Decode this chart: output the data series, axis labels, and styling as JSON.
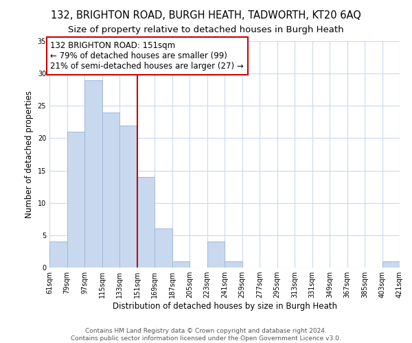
{
  "title": "132, BRIGHTON ROAD, BURGH HEATH, TADWORTH, KT20 6AQ",
  "subtitle": "Size of property relative to detached houses in Burgh Heath",
  "xlabel": "Distribution of detached houses by size in Burgh Heath",
  "ylabel": "Number of detached properties",
  "bin_edges": [
    61,
    79,
    97,
    115,
    133,
    151,
    169,
    187,
    205,
    223,
    241,
    259,
    277,
    295,
    313,
    331,
    349,
    367,
    385,
    403,
    421
  ],
  "bar_heights": [
    4,
    21,
    29,
    24,
    22,
    14,
    6,
    1,
    0,
    4,
    1,
    0,
    0,
    0,
    0,
    0,
    0,
    0,
    0,
    1
  ],
  "bar_color": "#c8d9ef",
  "bar_edge_color": "#a0b8d8",
  "vline_x": 151,
  "vline_color": "#cc0000",
  "annotation_line1": "132 BRIGHTON ROAD: 151sqm",
  "annotation_line2": "← 79% of detached houses are smaller (99)",
  "annotation_line3": "21% of semi-detached houses are larger (27) →",
  "annotation_box_color": "#ffffff",
  "annotation_box_edge_color": "#cc0000",
  "ylim": [
    0,
    35
  ],
  "yticks": [
    0,
    5,
    10,
    15,
    20,
    25,
    30,
    35
  ],
  "tick_labels": [
    "61sqm",
    "79sqm",
    "97sqm",
    "115sqm",
    "133sqm",
    "151sqm",
    "169sqm",
    "187sqm",
    "205sqm",
    "223sqm",
    "241sqm",
    "259sqm",
    "277sqm",
    "295sqm",
    "313sqm",
    "331sqm",
    "349sqm",
    "367sqm",
    "385sqm",
    "403sqm",
    "421sqm"
  ],
  "footer_line1": "Contains HM Land Registry data © Crown copyright and database right 2024.",
  "footer_line2": "Contains public sector information licensed under the Open Government Licence v3.0.",
  "bg_color": "#ffffff",
  "grid_color": "#c8d9ef",
  "title_fontsize": 10.5,
  "subtitle_fontsize": 9.5,
  "label_fontsize": 8.5,
  "tick_fontsize": 7,
  "annotation_fontsize": 8.5,
  "footer_fontsize": 6.5
}
